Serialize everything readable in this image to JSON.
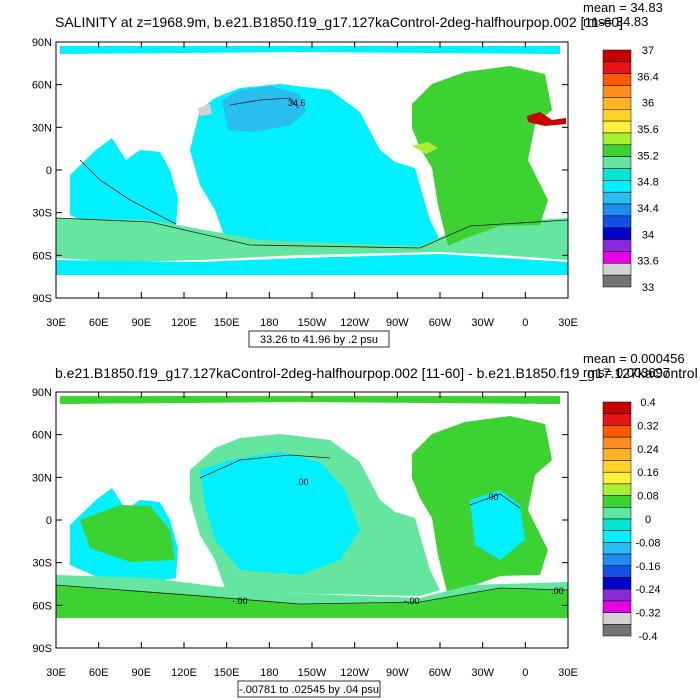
{
  "chart_data": [
    {
      "type": "heatmap",
      "title": "SALINITY at z=1968.9m, b.e21.B1850.f19_g17.127kaControl-2deg-halfhourpop.002 [11-60]",
      "stats": {
        "mean": "mean = 34.83",
        "rms": "rms= 34.83"
      },
      "x_ticks": [
        "30E",
        "60E",
        "90E",
        "120E",
        "150E",
        "180",
        "150W",
        "120W",
        "90W",
        "60W",
        "30W",
        "0",
        "30E"
      ],
      "y_ticks": [
        "90N",
        "60N",
        "30N",
        "0",
        "30S",
        "60S",
        "90S"
      ],
      "colorbar_labels": [
        "37",
        "36.4",
        "36",
        "35.6",
        "35.2",
        "34.8",
        "34.4",
        "34",
        "33.6",
        "33"
      ],
      "colorbar_colors": [
        "#c80000",
        "#e61414",
        "#ff5a00",
        "#ff8c1e",
        "#ffb428",
        "#ffd228",
        "#fff03c",
        "#aaf032",
        "#3cd232",
        "#64e6a0",
        "#00e6d2",
        "#00f0ff",
        "#28bef0",
        "#1e8cf0",
        "#1450e6",
        "#0000c8",
        "#8c28dc",
        "#e600e6",
        "#d2d2d2",
        "#737373"
      ],
      "range_note": "33.26 to 41.96 by .2 psu",
      "contour_labels": [
        "34.6"
      ],
      "xlim": [
        30,
        390
      ],
      "ylim": [
        -90,
        90
      ]
    },
    {
      "type": "heatmap",
      "title": "b.e21.B1850.f19_g17.127kaControl-2deg-halfhourpop.002 [11-60] - b.e21.B1850.f19_g17.127kaControl",
      "stats": {
        "mean": "mean = 0.000456",
        "rms": "rms= 0.003697"
      },
      "x_ticks": [
        "30E",
        "60E",
        "90E",
        "120E",
        "150E",
        "180",
        "150W",
        "120W",
        "90W",
        "60W",
        "30W",
        "0",
        "30E"
      ],
      "y_ticks": [
        "90N",
        "60N",
        "30N",
        "0",
        "30S",
        "60S",
        "90S"
      ],
      "colorbar_labels": [
        "0.4",
        "0.32",
        "0.24",
        "0.16",
        "0.08",
        "0",
        "-0.08",
        "-0.16",
        "-0.24",
        "-0.32",
        "-0.4"
      ],
      "colorbar_colors": [
        "#c80000",
        "#e61414",
        "#ff5a00",
        "#ff8c1e",
        "#ffb428",
        "#ffd228",
        "#fff03c",
        "#aaf032",
        "#3cd232",
        "#64e6a0",
        "#00e6d2",
        "#00f0ff",
        "#28bef0",
        "#1e8cf0",
        "#1450e6",
        "#0000c8",
        "#8c28dc",
        "#e600e6",
        "#d2d2d2",
        "#737373"
      ],
      "range_note": "-.00781 to .02545 by .04 psu",
      "contour_labels": [
        ".00",
        ".00",
        "-.00",
        "-.00",
        ".00"
      ],
      "xlim": [
        30,
        390
      ],
      "ylim": [
        -90,
        90
      ]
    }
  ]
}
